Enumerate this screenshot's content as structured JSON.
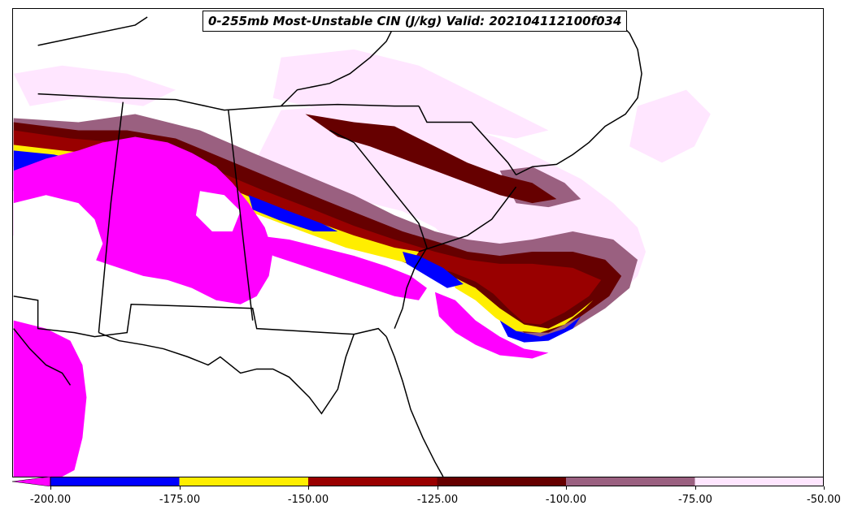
{
  "title": "0-255mb Most-Unstable CIN (J/kg) Valid: 202104112100f034",
  "colorbar": {
    "ticks": [
      "-200.00",
      "-175.00",
      "-150.00",
      "-125.00",
      "-100.00",
      "-75.00",
      "-50.00"
    ],
    "colors": [
      "#ff00ff",
      "#0000ff",
      "#ffee00",
      "#990000",
      "#660000",
      "#9a6080",
      "#ffe6ff"
    ]
  },
  "map_colors": {
    "magenta": "#ff00ff",
    "blue": "#0000ff",
    "yellow": "#ffee00",
    "red": "#990000",
    "darkred": "#660000",
    "mauve": "#9a6080",
    "pink": "#ffe6ff"
  }
}
